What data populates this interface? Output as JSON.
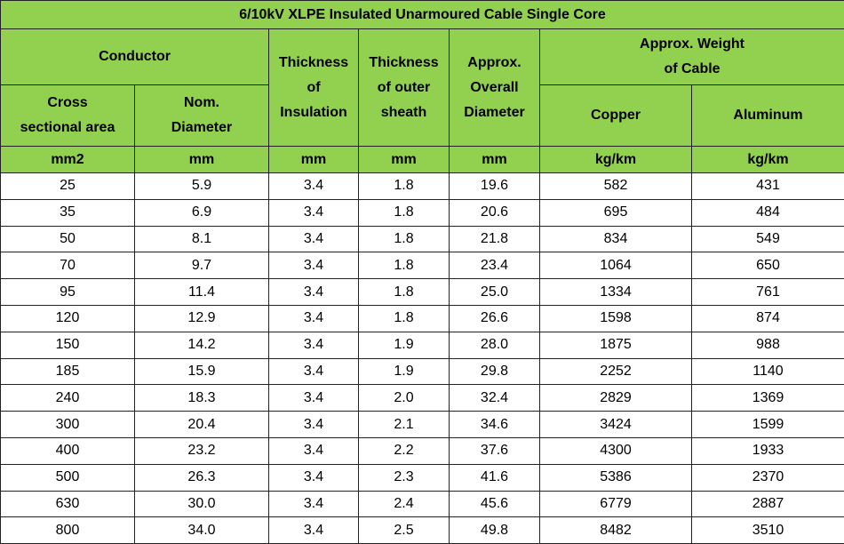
{
  "table": {
    "title": "6/10kV XLPE Insulated Unarmoured Cable      Single Core",
    "headers": {
      "conductor": "Conductor",
      "cross_sectional_area": "Cross\nsectional area",
      "nom_diameter": "Nom.\nDiameter",
      "thickness_insulation": "Thickness\nof\nInsulation",
      "thickness_outer_sheath": "Thickness\nof outer\nsheath",
      "approx_overall_diameter": "Approx.\nOverall\nDiameter",
      "approx_weight": "Approx. Weight\nof Cable",
      "copper": "Copper",
      "aluminum": "Aluminum"
    },
    "units": [
      "mm2",
      "mm",
      "mm",
      "mm",
      "mm",
      "kg/km",
      "kg/km"
    ],
    "rows": [
      [
        "25",
        "5.9",
        "3.4",
        "1.8",
        "19.6",
        "582",
        "431"
      ],
      [
        "35",
        "6.9",
        "3.4",
        "1.8",
        "20.6",
        "695",
        "484"
      ],
      [
        "50",
        "8.1",
        "3.4",
        "1.8",
        "21.8",
        "834",
        "549"
      ],
      [
        "70",
        "9.7",
        "3.4",
        "1.8",
        "23.4",
        "1064",
        "650"
      ],
      [
        "95",
        "11.4",
        "3.4",
        "1.8",
        "25.0",
        "1334",
        "761"
      ],
      [
        "120",
        "12.9",
        "3.4",
        "1.8",
        "26.6",
        "1598",
        "874"
      ],
      [
        "150",
        "14.2",
        "3.4",
        "1.9",
        "28.0",
        "1875",
        "988"
      ],
      [
        "185",
        "15.9",
        "3.4",
        "1.9",
        "29.8",
        "2252",
        "1140"
      ],
      [
        "240",
        "18.3",
        "3.4",
        "2.0",
        "32.4",
        "2829",
        "1369"
      ],
      [
        "300",
        "20.4",
        "3.4",
        "2.1",
        "34.6",
        "3424",
        "1599"
      ],
      [
        "400",
        "23.2",
        "3.4",
        "2.2",
        "37.6",
        "4300",
        "1933"
      ],
      [
        "500",
        "26.3",
        "3.4",
        "2.3",
        "41.6",
        "5386",
        "2370"
      ],
      [
        "630",
        "30.0",
        "3.4",
        "2.4",
        "45.6",
        "6779",
        "2887"
      ],
      [
        "800",
        "34.0",
        "3.4",
        "2.5",
        "49.8",
        "8482",
        "3510"
      ]
    ],
    "colors": {
      "header_bg": "#92d050",
      "border": "#222222",
      "cell_bg": "#ffffff"
    }
  }
}
